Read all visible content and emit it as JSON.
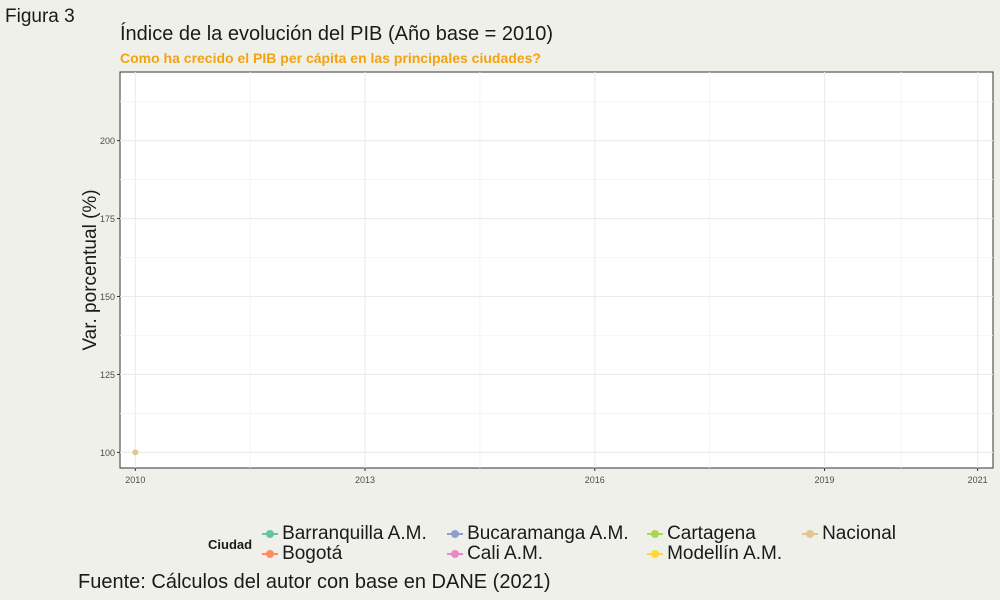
{
  "figure_label": "Figura 3",
  "caption": "Fuente: Cálculos del autor con base en DANE (2021)",
  "colors": {
    "subtitle": "#f5a20f",
    "background": "#f0f0eb",
    "grid": "#ebebeb"
  },
  "chart_data": {
    "type": "line",
    "title": "Índice de la evolución del PIB (Año base = 2010)",
    "subtitle": "Como ha crecido el PIB per cápita en las principales ciudades?",
    "xlabel": "",
    "ylabel": "Var. porcentual (%)",
    "xlim": [
      2009.8,
      2021.2
    ],
    "ylim": [
      95,
      222
    ],
    "x_ticks": [
      2010,
      2013,
      2016,
      2019,
      2021
    ],
    "y_ticks": [
      100,
      125,
      150,
      175,
      200
    ],
    "grid": true,
    "legend_title": "Ciudad",
    "legend_position": "bottom",
    "series": [
      {
        "name": "Barranquilla A.M.",
        "color": "#66c2a5",
        "points": []
      },
      {
        "name": "Bogotá",
        "color": "#fc8d62",
        "points": []
      },
      {
        "name": "Bucaramanga A.M.",
        "color": "#8da0cb",
        "points": []
      },
      {
        "name": "Cali A.M.",
        "color": "#e78ac3",
        "points": []
      },
      {
        "name": "Cartagena",
        "color": "#a6d854",
        "points": []
      },
      {
        "name": "Modellín A.M.",
        "color": "#ffd92f",
        "points": []
      },
      {
        "name": "Nacional",
        "color": "#e5c494",
        "points": [
          {
            "x": 2010,
            "y": 100
          }
        ]
      }
    ]
  }
}
